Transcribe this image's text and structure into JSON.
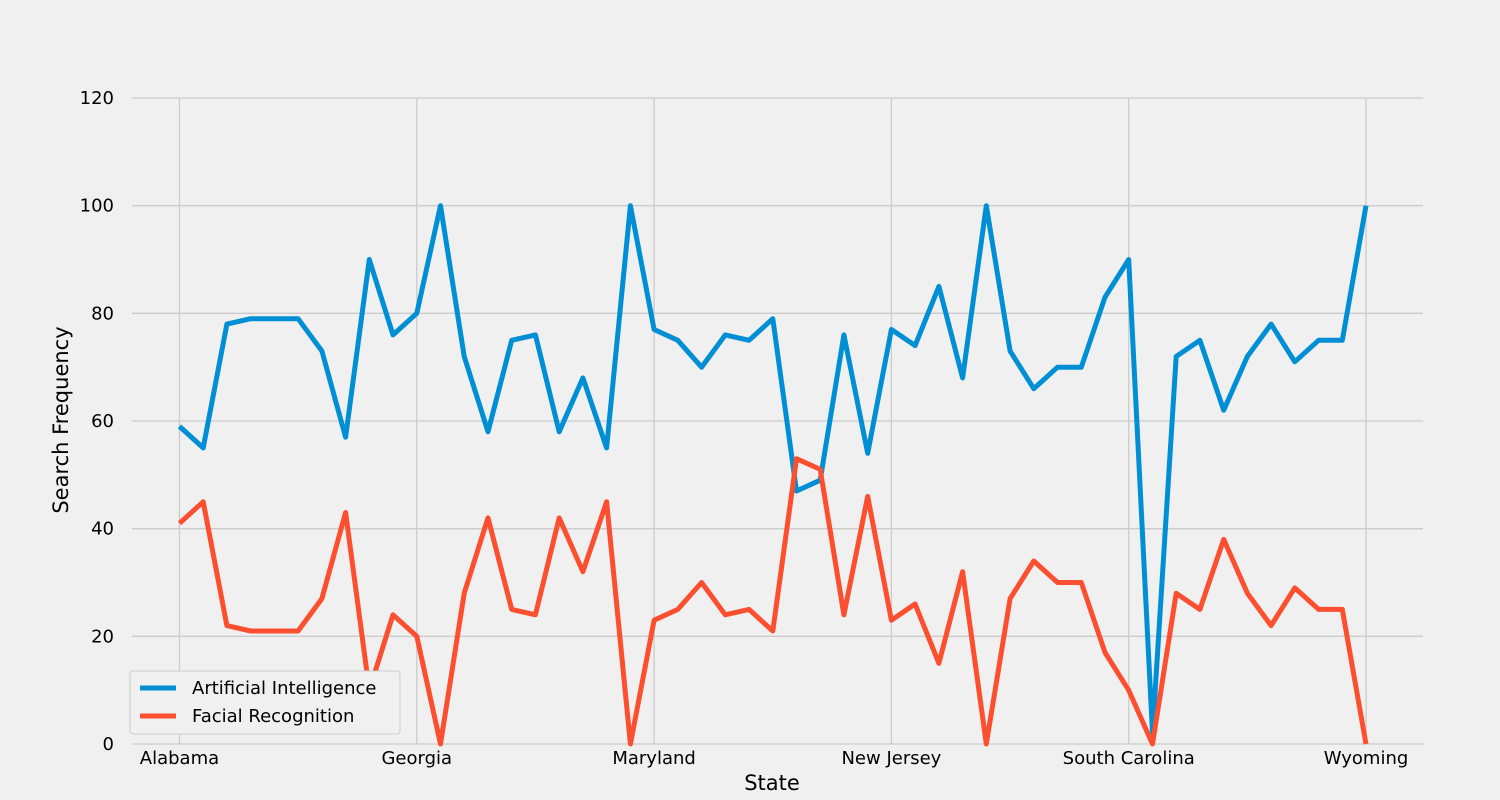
{
  "chart_data": {
    "type": "line",
    "xlabel": "State",
    "ylabel": "Search Frequency",
    "x_tick_labels": [
      "Alabama",
      "Georgia",
      "Maryland",
      "New Jersey",
      "South Carolina",
      "Wyoming"
    ],
    "x_tick_indices": [
      0,
      10,
      20,
      30,
      40,
      50
    ],
    "y_ticks": [
      0,
      20,
      40,
      60,
      80,
      100,
      120
    ],
    "ylim": [
      0,
      120
    ],
    "xlim": [
      -2,
      52.4
    ],
    "grid": true,
    "legend_position": "lower-left",
    "series": [
      {
        "name": "Artificial Intelligence",
        "color": "#008fd5",
        "values": [
          59,
          55,
          78,
          79,
          79,
          79,
          73,
          57,
          90,
          76,
          80,
          100,
          72,
          58,
          75,
          76,
          58,
          68,
          55,
          100,
          77,
          75,
          70,
          76,
          75,
          79,
          47,
          49,
          76,
          54,
          77,
          74,
          85,
          68,
          100,
          73,
          66,
          70,
          70,
          83,
          90,
          2,
          72,
          75,
          62,
          72,
          78,
          71,
          75,
          75,
          100
        ]
      },
      {
        "name": "Facial Recognition",
        "color": "#fc4f30",
        "values": [
          41,
          45,
          22,
          21,
          21,
          21,
          27,
          43,
          10,
          24,
          20,
          0,
          28,
          42,
          25,
          24,
          42,
          32,
          45,
          0,
          23,
          25,
          30,
          24,
          25,
          21,
          53,
          51,
          24,
          46,
          23,
          26,
          15,
          32,
          0,
          27,
          34,
          30,
          30,
          17,
          10,
          0,
          28,
          25,
          38,
          28,
          22,
          29,
          25,
          25,
          0
        ]
      }
    ]
  }
}
